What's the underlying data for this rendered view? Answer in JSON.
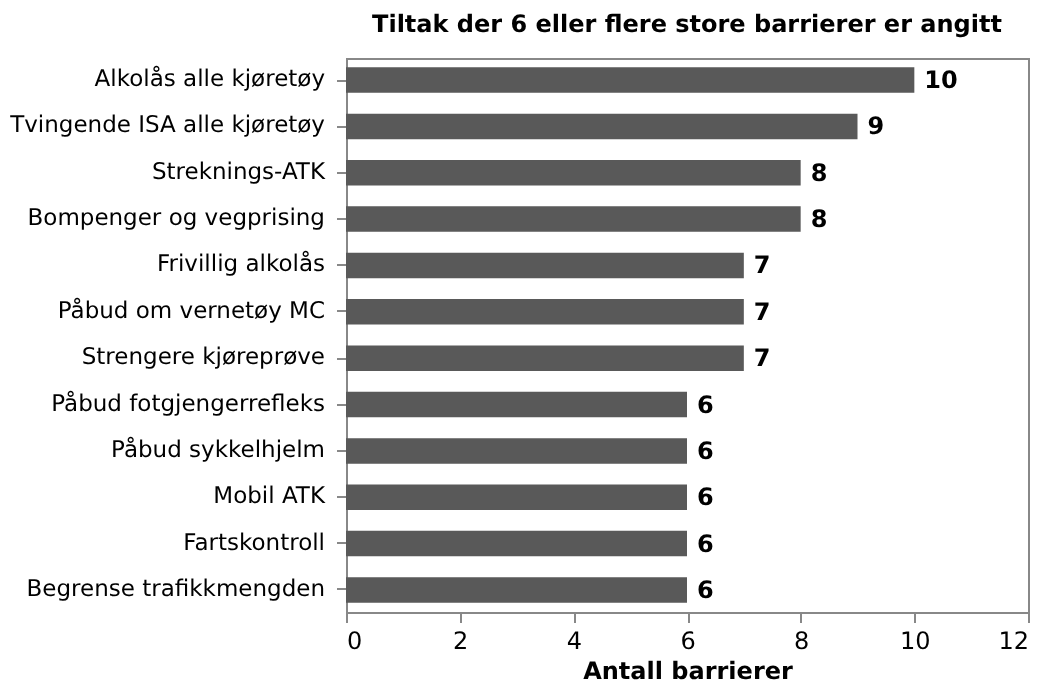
{
  "chart_data": {
    "type": "bar",
    "orientation": "horizontal",
    "title": "Tiltak der 6 eller flere store barrierer er angitt",
    "xlabel": "Antall barrierer",
    "categories": [
      "Alkolås alle kjøretøy",
      "Tvingende ISA alle kjøretøy",
      "Streknings-ATK",
      "Bompenger og vegprising",
      "Frivillig alkolås",
      "Påbud om vernetøy MC",
      "Strengere kjøreprøve",
      "Påbud fotgjengerrefleks",
      "Påbud sykkelhjelm",
      "Mobil ATK",
      "Fartskontroll",
      "Begrense trafikkmengden"
    ],
    "values": [
      10,
      9,
      8,
      8,
      7,
      7,
      7,
      6,
      6,
      6,
      6,
      6
    ],
    "color": "#595959",
    "xlim": [
      0,
      12
    ],
    "xticks": [
      0,
      2,
      4,
      6,
      8,
      10,
      12
    ],
    "grid": false,
    "data_labels": true
  }
}
